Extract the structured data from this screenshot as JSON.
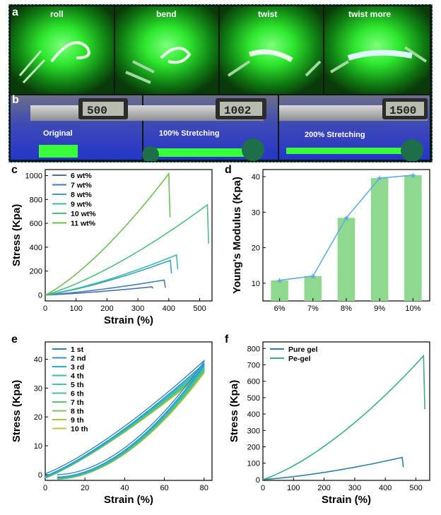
{
  "panels": {
    "a": {
      "label": "a",
      "photos": [
        {
          "caption": "roll"
        },
        {
          "caption": "bend"
        },
        {
          "caption": "twist"
        },
        {
          "caption": "twist more"
        }
      ]
    },
    "b": {
      "label": "b",
      "photos": [
        {
          "caption": "Original",
          "display": "500"
        },
        {
          "caption": "100% Stretching",
          "display": "1002"
        },
        {
          "caption": "200% Stretching",
          "display": "1500"
        }
      ]
    },
    "c": {
      "label": "c"
    },
    "d": {
      "label": "d"
    },
    "e": {
      "label": "e"
    },
    "f": {
      "label": "f"
    }
  },
  "colors": {
    "glow_green": "#39ff3a",
    "uv_blue": "#3d55c8",
    "bar_green": "#8fd88f",
    "line_blue": "#5aa9e6"
  },
  "chart_data": [
    {
      "id": "c",
      "type": "line",
      "xlabel": "Strain (%)",
      "ylabel": "Stress (Kpa)",
      "xlim": [
        0,
        540
      ],
      "ylim": [
        -50,
        1050
      ],
      "xticks": [
        0,
        100,
        200,
        300,
        400,
        500
      ],
      "yticks": [
        0,
        200,
        400,
        600,
        800,
        1000
      ],
      "legend_position": "top-left",
      "series": [
        {
          "name": "6 wt%",
          "color": "#4d6fa8",
          "break_strain": 345,
          "max_stress": 68,
          "drop_to": 55
        },
        {
          "name": "7 wt%",
          "color": "#3f7fb5",
          "break_strain": 385,
          "max_stress": 125,
          "drop_to": 60
        },
        {
          "name": "8 wt%",
          "color": "#3a9fc3",
          "break_strain": 405,
          "max_stress": 290,
          "drop_to": 180
        },
        {
          "name": "9 wt%",
          "color": "#3bbaa5",
          "break_strain": 425,
          "max_stress": 335,
          "drop_to": 215
        },
        {
          "name": "10 wt%",
          "color": "#4cc07a",
          "break_strain": 525,
          "max_stress": 755,
          "drop_to": 430
        },
        {
          "name": "11 wt%",
          "color": "#6fbf55",
          "break_strain": 400,
          "max_stress": 1015,
          "drop_to": 650
        }
      ]
    },
    {
      "id": "d",
      "type": "bar",
      "xlabel": "",
      "ylabel": "Young's Modulus (Kpa)",
      "ylim": [
        5,
        42
      ],
      "yticks": [
        10,
        20,
        30,
        40
      ],
      "categories": [
        "6%",
        "7%",
        "8%",
        "9%",
        "10%"
      ],
      "values": [
        10.8,
        12.0,
        28.4,
        39.6,
        40.4
      ]
    },
    {
      "id": "e",
      "type": "line",
      "xlabel": "Strain (%)",
      "ylabel": "Stress (Kpa)",
      "xlim": [
        0,
        84
      ],
      "ylim": [
        -2,
        46
      ],
      "xticks": [
        0,
        20,
        40,
        60,
        80
      ],
      "yticks": [
        0,
        10,
        20,
        30,
        40
      ],
      "legend_position": "top-left",
      "series": [
        {
          "name": "1 st",
          "color": "#2e7fc0",
          "max_stress": 39.5,
          "start": 0.3
        },
        {
          "name": "2 nd",
          "color": "#2f97c8",
          "max_stress": 38.5,
          "start": -0.5
        },
        {
          "name": "3 rd",
          "color": "#2eaac2",
          "max_stress": 38.0,
          "start": -0.8
        },
        {
          "name": "4 th",
          "color": "#34bfb8",
          "max_stress": 37.5,
          "start": -1.0
        },
        {
          "name": "5 th",
          "color": "#3cc8a6",
          "max_stress": 37.0,
          "start": -1.0
        },
        {
          "name": "6 th",
          "color": "#45c48a",
          "max_stress": 36.8,
          "start": -1.1
        },
        {
          "name": "7 th",
          "color": "#5ec070",
          "max_stress": 36.5,
          "start": -1.1
        },
        {
          "name": "8 th",
          "color": "#7fc35a",
          "max_stress": 36.2,
          "start": -1.2
        },
        {
          "name": "9 th",
          "color": "#a2c44a",
          "max_stress": 35.8,
          "start": -1.2
        },
        {
          "name": "10 th",
          "color": "#c6c23c",
          "max_stress": 35.5,
          "start": -1.3
        }
      ]
    },
    {
      "id": "f",
      "type": "line",
      "xlabel": "Strain (%)",
      "ylabel": "Stress (Kpa)",
      "xlim": [
        0,
        545
      ],
      "ylim": [
        -5,
        840
      ],
      "xticks": [
        0,
        100,
        200,
        300,
        400,
        500
      ],
      "yticks": [
        0,
        100,
        200,
        300,
        400,
        500,
        600,
        700,
        800
      ],
      "legend_position": "top-left",
      "series": [
        {
          "name": "Pure gel",
          "color": "#2e7fa8",
          "break_strain": 455,
          "max_stress": 135,
          "drop_to": 75
        },
        {
          "name": "Pe-gel",
          "color": "#3ab07a",
          "break_strain": 525,
          "max_stress": 755,
          "drop_to": 430
        }
      ]
    }
  ]
}
